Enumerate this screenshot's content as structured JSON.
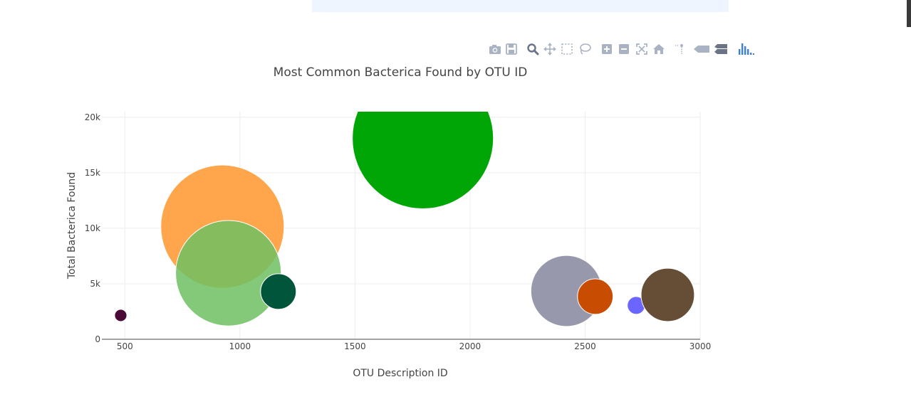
{
  "modebar": {
    "buttons": [
      {
        "name": "download-png-icon",
        "interactable": true
      },
      {
        "name": "save-icon",
        "interactable": true
      },
      {
        "name": "zoom-icon",
        "interactable": true,
        "active": true
      },
      {
        "name": "pan-icon",
        "interactable": true
      },
      {
        "name": "box-select-icon",
        "interactable": true
      },
      {
        "name": "lasso-select-icon",
        "interactable": true
      },
      {
        "name": "zoom-in-icon",
        "interactable": true
      },
      {
        "name": "zoom-out-icon",
        "interactable": true
      },
      {
        "name": "autoscale-icon",
        "interactable": true
      },
      {
        "name": "reset-axes-icon",
        "interactable": true
      },
      {
        "name": "spike-lines-icon",
        "interactable": true
      },
      {
        "name": "hover-closest-icon",
        "interactable": true
      },
      {
        "name": "hover-compare-icon",
        "interactable": true
      },
      {
        "name": "plotly-logo-icon",
        "interactable": true
      }
    ],
    "icon_color": "#aab3c4",
    "active_color": "#6b7387",
    "logo_color": "#3f4f75"
  },
  "chart_data": {
    "type": "scatter",
    "mode": "markers",
    "title": "Most Common Bacterica Found by OTU ID",
    "xlabel": "OTU Description ID",
    "ylabel": "Total Bacterica Found",
    "xlim": [
      400,
      3000
    ],
    "ylim": [
      0,
      20500
    ],
    "xticks": [
      500,
      1000,
      1500,
      2000,
      2500,
      3000
    ],
    "yticks": [
      0,
      5000,
      10000,
      15000,
      20000
    ],
    "xtick_labels": [
      "500",
      "1000",
      "1500",
      "2000",
      "2500",
      "3000"
    ],
    "ytick_labels": [
      "0",
      "5k",
      "10k",
      "15k",
      "20k"
    ],
    "grid": true,
    "points": [
      {
        "x": 482,
        "y": 2150,
        "size": 1.1,
        "color": "#4a0a35",
        "opacity": 1
      },
      {
        "x": 924,
        "y": 10150,
        "size": 11.1,
        "color": "#ffa64d",
        "opacity": 1
      },
      {
        "x": 950,
        "y": 5950,
        "size": 9.5,
        "color": "#6fbf62",
        "opacity": 0.85
      },
      {
        "x": 1167,
        "y": 4300,
        "size": 3.2,
        "color": "#00553a",
        "opacity": 1
      },
      {
        "x": 1795,
        "y": 18100,
        "size": 12.7,
        "color": "#00a605",
        "opacity": 1
      },
      {
        "x": 2419,
        "y": 4350,
        "size": 6.4,
        "color": "#9898ad",
        "opacity": 1
      },
      {
        "x": 2544,
        "y": 3850,
        "size": 3.2,
        "color": "#c94c03",
        "opacity": 1
      },
      {
        "x": 2722,
        "y": 3050,
        "size": 1.6,
        "color": "#6a66ff",
        "opacity": 1
      },
      {
        "x": 2859,
        "y": 4000,
        "size": 4.8,
        "color": "#654d36",
        "opacity": 1
      }
    ]
  }
}
